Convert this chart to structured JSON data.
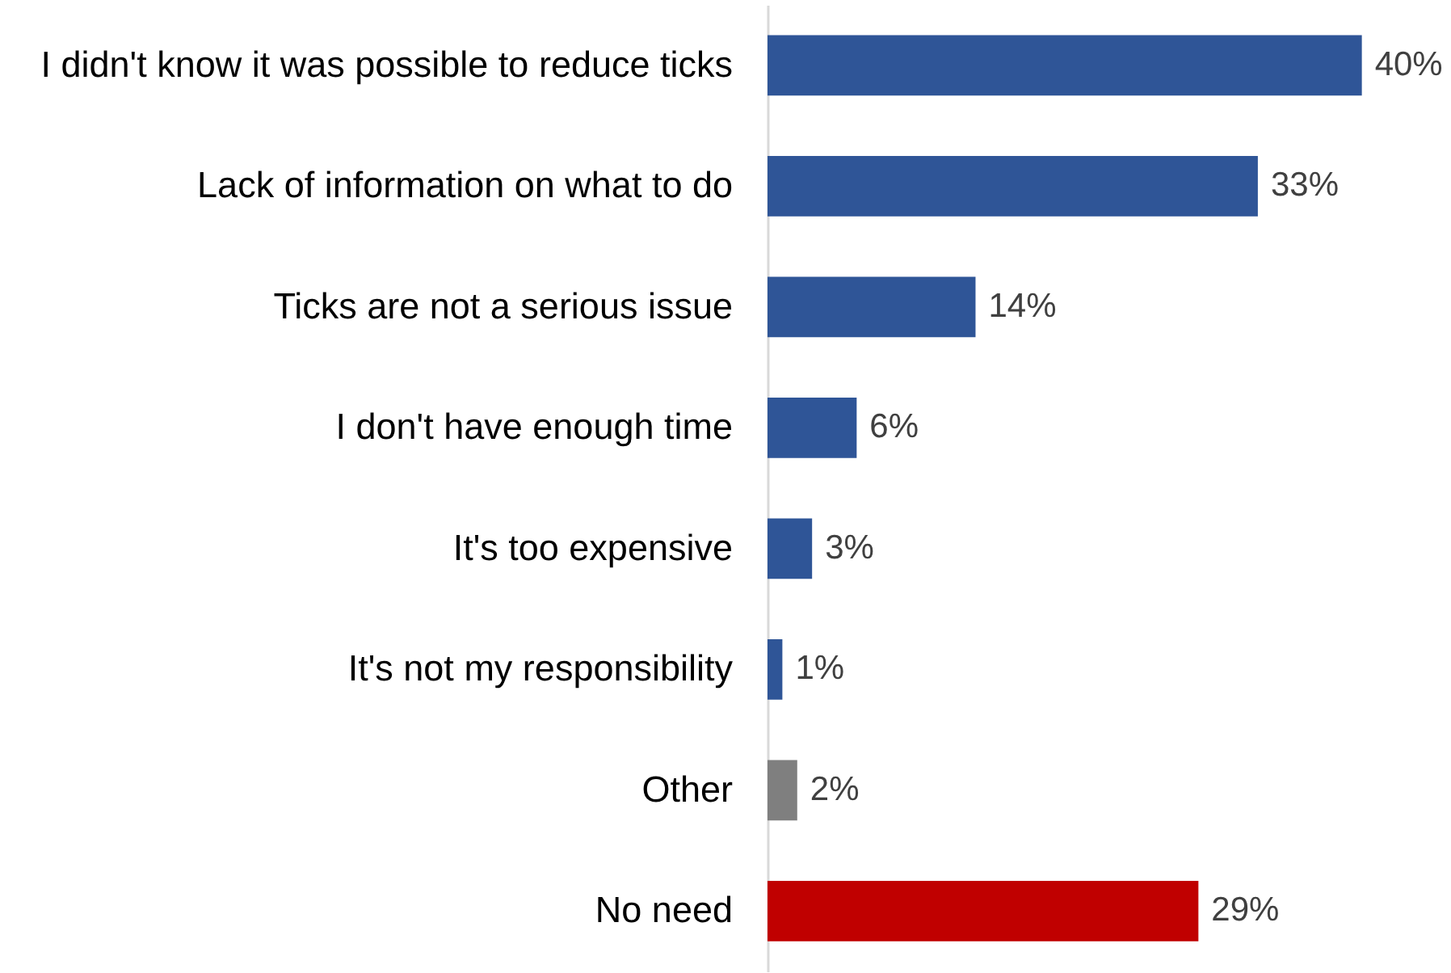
{
  "chart_data": {
    "type": "bar",
    "orientation": "horizontal",
    "categories": [
      "I didn't know it was possible to reduce ticks",
      "Lack of information on what to do",
      "Ticks are not a serious issue",
      "I don't have enough time",
      "It's too expensive",
      "It's not my responsibility",
      "Other",
      "No need"
    ],
    "values": [
      40,
      33,
      14,
      6,
      3,
      1,
      2,
      29
    ],
    "colors": [
      "#2f5597",
      "#2f5597",
      "#2f5597",
      "#2f5597",
      "#2f5597",
      "#2f5597",
      "#7f7f7f",
      "#c00000"
    ],
    "value_labels": [
      "40%",
      "33%",
      "14%",
      "6%",
      "3%",
      "1%",
      "2%",
      "29%"
    ],
    "xlim": [
      0,
      46
    ]
  }
}
